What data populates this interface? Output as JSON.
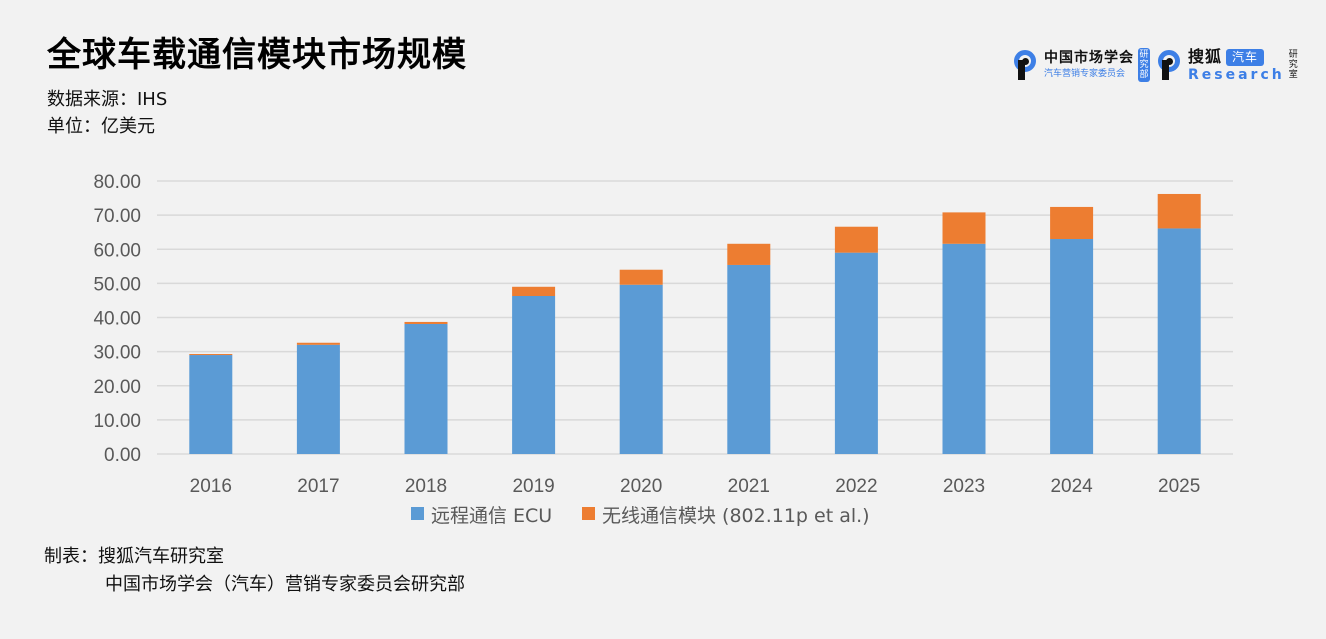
{
  "title": "全球车载通信模块市场规模",
  "source_line": "数据来源：IHS",
  "unit_line": "单位：亿美元",
  "logos": {
    "cma_name": "中国市场学会",
    "cma_sub": "汽车营销专家委员会",
    "cma_badge": "研究部",
    "sohu_name": "搜狐",
    "sohu_badge": "汽车",
    "sohu_research": "Research",
    "sohu_lab": "研究室"
  },
  "credits": {
    "line1": "制表：搜狐汽车研究室",
    "line2": "中国市场学会（汽车）营销专家委员会研究部"
  },
  "colors": {
    "series1": "#5b9bd5",
    "series2": "#ed7d31",
    "grid": "#d9d9d9",
    "tick_text": "#595959"
  },
  "chart_data": {
    "type": "bar",
    "stacked": true,
    "title": "全球车载通信模块市场规模",
    "xlabel": "",
    "ylabel": "",
    "categories": [
      "2016",
      "2017",
      "2018",
      "2019",
      "2020",
      "2021",
      "2022",
      "2023",
      "2024",
      "2025"
    ],
    "series": [
      {
        "name": "远程通信 ECU",
        "values": [
          29.0,
          32.0,
          38.1,
          46.3,
          49.6,
          55.4,
          59.0,
          61.6,
          63.0,
          66.1
        ]
      },
      {
        "name": "无线通信模块 (802.11p et al.)",
        "values": [
          0.3,
          0.6,
          0.6,
          2.7,
          4.4,
          6.2,
          7.6,
          9.2,
          9.4,
          10.1
        ]
      }
    ],
    "ylim": [
      0,
      80
    ],
    "yticks": [
      "0.00",
      "10.00",
      "20.00",
      "30.00",
      "40.00",
      "50.00",
      "60.00",
      "70.00",
      "80.00"
    ],
    "ytick_values": [
      0,
      10,
      20,
      30,
      40,
      50,
      60,
      70,
      80
    ],
    "grid": true,
    "legend": "bottom"
  }
}
